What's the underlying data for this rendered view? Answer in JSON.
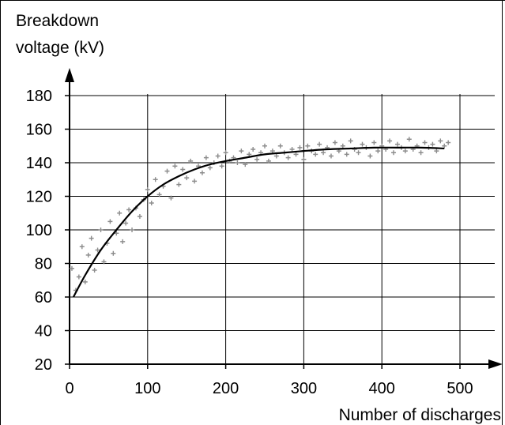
{
  "chart_data": {
    "type": "scatter",
    "title": "",
    "ylabel_line1": "Breakdown",
    "ylabel_line2": "voltage (kV)",
    "xlabel": "Number of discharges",
    "xlim": [
      0,
      500
    ],
    "ylim": [
      20,
      180
    ],
    "x_ticks": [
      0,
      100,
      200,
      300,
      400,
      500
    ],
    "x_tick_labels": [
      "0",
      "100",
      "200",
      "300",
      "400",
      "500"
    ],
    "y_ticks": [
      20,
      40,
      60,
      80,
      100,
      120,
      140,
      160,
      180
    ],
    "y_tick_labels": [
      "20",
      "40",
      "60",
      "80",
      "100",
      "120",
      "140",
      "160",
      "180"
    ],
    "grid": true,
    "legend": "none",
    "series": [
      {
        "kind": "scatter",
        "marker": "plus",
        "color": "#8c8c8c",
        "x": [
          3,
          8,
          12,
          16,
          20,
          24,
          28,
          32,
          36,
          40,
          44,
          48,
          52,
          56,
          60,
          64,
          68,
          72,
          76,
          80,
          85,
          90,
          95,
          100,
          105,
          110,
          115,
          120,
          125,
          130,
          135,
          140,
          145,
          150,
          155,
          160,
          165,
          170,
          175,
          180,
          185,
          190,
          195,
          200,
          205,
          210,
          215,
          220,
          225,
          230,
          235,
          240,
          245,
          250,
          255,
          260,
          265,
          270,
          275,
          280,
          285,
          290,
          295,
          300,
          305,
          310,
          315,
          320,
          325,
          330,
          335,
          340,
          345,
          350,
          355,
          360,
          365,
          370,
          375,
          380,
          385,
          390,
          395,
          400,
          405,
          410,
          415,
          420,
          425,
          430,
          435,
          440,
          445,
          450,
          455,
          460,
          465,
          470,
          475,
          480,
          485
        ],
        "y": [
          77,
          64,
          72,
          90,
          69,
          85,
          95,
          76,
          88,
          100,
          81,
          92,
          105,
          86,
          98,
          110,
          93,
          104,
          112,
          100,
          113,
          108,
          118,
          124,
          116,
          130,
          121,
          126,
          135,
          119,
          138,
          127,
          136,
          131,
          141,
          129,
          138,
          134,
          143,
          137,
          140,
          144,
          138,
          146,
          141,
          143,
          140,
          147,
          139,
          145,
          148,
          142,
          146,
          150,
          141,
          147,
          144,
          150,
          146,
          143,
          148,
          145,
          149,
          142,
          150,
          147,
          145,
          151,
          146,
          149,
          144,
          152,
          147,
          150,
          145,
          153,
          148,
          146,
          151,
          149,
          144,
          152,
          147,
          150,
          148,
          153,
          146,
          151,
          149,
          147,
          154,
          148,
          150,
          146,
          152,
          149,
          151,
          147,
          153,
          150,
          152
        ]
      },
      {
        "kind": "line",
        "color": "#000000",
        "x": [
          5,
          20,
          40,
          60,
          80,
          100,
          120,
          140,
          160,
          180,
          200,
          225,
          250,
          275,
          300,
          330,
          360,
          390,
          420,
          450,
          480
        ],
        "y": [
          60,
          73,
          88,
          100,
          111,
          120,
          127,
          132,
          136,
          139,
          141,
          143,
          145,
          146,
          147,
          148,
          148.5,
          149,
          149,
          149,
          148.5
        ]
      }
    ]
  }
}
